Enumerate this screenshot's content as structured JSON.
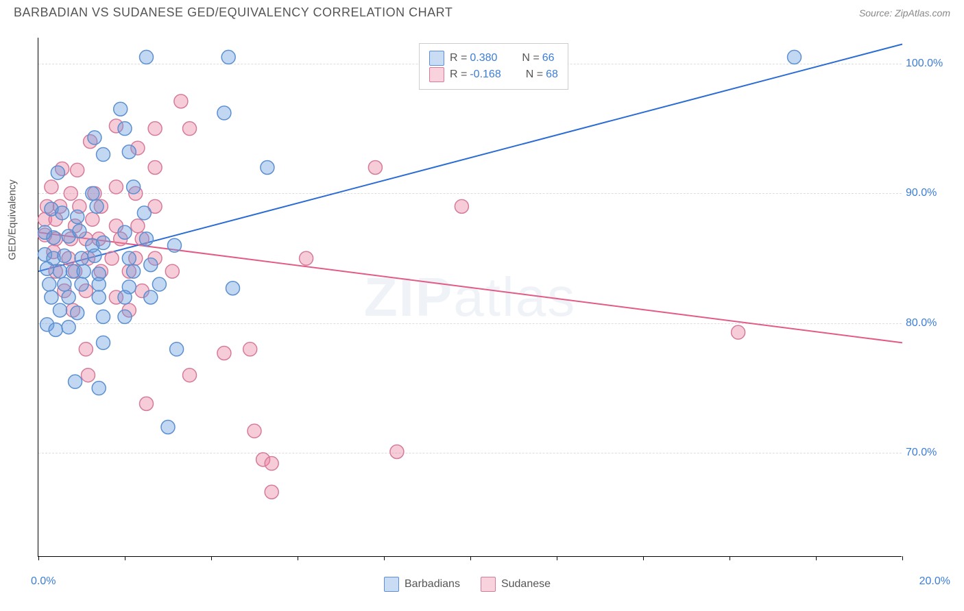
{
  "header": {
    "title": "BARBADIAN VS SUDANESE GED/EQUIVALENCY CORRELATION CHART",
    "source": "Source: ZipAtlas.com"
  },
  "watermark": {
    "prefix": "ZIP",
    "suffix": "atlas"
  },
  "chart": {
    "type": "scatter",
    "background_color": "#ffffff",
    "grid_color": "#dddddd",
    "axis_color": "#000000",
    "y_axis_label": "GED/Equivalency",
    "x_range": [
      0,
      20
    ],
    "y_range": [
      62,
      102
    ],
    "yticks": [
      70.0,
      80.0,
      90.0,
      100.0
    ],
    "ytick_labels": [
      "70.0%",
      "80.0%",
      "90.0%",
      "100.0%"
    ],
    "xtick_positions": [
      0,
      2,
      4,
      6,
      8,
      10,
      12,
      14,
      16,
      18,
      20
    ],
    "x_label_start": "0.0%",
    "x_label_end": "20.0%",
    "series": {
      "blue": {
        "label": "Barbadians",
        "marker_color": "rgba(99,155,222,0.40)",
        "stroke_color": "#5b8fd0",
        "line_color": "#2b6cd4",
        "line_width": 2,
        "r_value": "0.380",
        "n_value": "66",
        "trend": {
          "x1": 0,
          "y1": 84,
          "x2": 20,
          "y2": 101.5
        },
        "points": [
          [
            2.5,
            100.5
          ],
          [
            4.4,
            100.5
          ],
          [
            17.5,
            100.5
          ],
          [
            1.9,
            96.5
          ],
          [
            4.3,
            96.2
          ],
          [
            2.0,
            95.0
          ],
          [
            1.3,
            94.3
          ],
          [
            1.5,
            93.0
          ],
          [
            2.1,
            93.2
          ],
          [
            5.3,
            92.0
          ],
          [
            0.45,
            91.6
          ],
          [
            1.25,
            90.0
          ],
          [
            2.2,
            90.5
          ],
          [
            0.3,
            88.8
          ],
          [
            0.55,
            88.5
          ],
          [
            0.9,
            88.2
          ],
          [
            1.35,
            89.0
          ],
          [
            2.45,
            88.5
          ],
          [
            0.15,
            87.0
          ],
          [
            0.35,
            86.6
          ],
          [
            0.7,
            86.7
          ],
          [
            0.95,
            87.1
          ],
          [
            1.25,
            86.0
          ],
          [
            1.5,
            86.2
          ],
          [
            2.0,
            87.0
          ],
          [
            2.5,
            86.5
          ],
          [
            0.15,
            85.3
          ],
          [
            0.35,
            85.0
          ],
          [
            0.6,
            85.2
          ],
          [
            1.0,
            85.0
          ],
          [
            1.3,
            85.2
          ],
          [
            2.1,
            85.0
          ],
          [
            3.15,
            86.0
          ],
          [
            0.2,
            84.2
          ],
          [
            0.5,
            84.0
          ],
          [
            0.8,
            84.0
          ],
          [
            1.05,
            84.0
          ],
          [
            1.4,
            83.8
          ],
          [
            2.2,
            84.0
          ],
          [
            2.6,
            84.5
          ],
          [
            0.25,
            83.0
          ],
          [
            0.6,
            83.0
          ],
          [
            1.0,
            83.0
          ],
          [
            1.4,
            83.0
          ],
          [
            2.1,
            82.8
          ],
          [
            2.8,
            83.0
          ],
          [
            4.5,
            82.7
          ],
          [
            0.3,
            82.0
          ],
          [
            0.7,
            82.0
          ],
          [
            1.4,
            82.0
          ],
          [
            2.0,
            82.0
          ],
          [
            2.6,
            82.0
          ],
          [
            0.5,
            81.0
          ],
          [
            0.9,
            80.8
          ],
          [
            1.5,
            80.5
          ],
          [
            2.0,
            80.5
          ],
          [
            0.2,
            79.9
          ],
          [
            0.4,
            79.5
          ],
          [
            0.7,
            79.7
          ],
          [
            1.5,
            78.5
          ],
          [
            3.2,
            78.0
          ],
          [
            0.85,
            75.5
          ],
          [
            1.4,
            75.0
          ],
          [
            3.0,
            72.0
          ]
        ]
      },
      "pink": {
        "label": "Sudanese",
        "marker_color": "rgba(235,128,160,0.40)",
        "stroke_color": "#d67a9a",
        "line_color": "#e35a85",
        "line_width": 2,
        "r_value": "-0.168",
        "n_value": "68",
        "trend": {
          "x1": 0,
          "y1": 87,
          "x2": 20,
          "y2": 78.5
        },
        "points": [
          [
            3.3,
            97.1
          ],
          [
            1.8,
            95.2
          ],
          [
            2.7,
            95.0
          ],
          [
            3.5,
            95.0
          ],
          [
            1.2,
            94.0
          ],
          [
            2.3,
            93.5
          ],
          [
            0.55,
            91.9
          ],
          [
            0.9,
            91.8
          ],
          [
            2.7,
            92.0
          ],
          [
            7.8,
            92.0
          ],
          [
            0.3,
            90.5
          ],
          [
            0.75,
            90.0
          ],
          [
            1.3,
            90.0
          ],
          [
            1.8,
            90.5
          ],
          [
            2.25,
            90.0
          ],
          [
            0.2,
            89.0
          ],
          [
            0.5,
            89.0
          ],
          [
            0.95,
            89.0
          ],
          [
            1.45,
            89.0
          ],
          [
            2.7,
            89.0
          ],
          [
            9.8,
            89.0
          ],
          [
            0.15,
            88.0
          ],
          [
            0.4,
            88.0
          ],
          [
            0.85,
            87.5
          ],
          [
            1.25,
            88.0
          ],
          [
            1.8,
            87.5
          ],
          [
            2.3,
            87.5
          ],
          [
            0.15,
            86.8
          ],
          [
            0.4,
            86.5
          ],
          [
            0.75,
            86.5
          ],
          [
            1.1,
            86.5
          ],
          [
            1.4,
            86.5
          ],
          [
            1.9,
            86.5
          ],
          [
            2.4,
            86.5
          ],
          [
            0.35,
            85.5
          ],
          [
            0.7,
            85.0
          ],
          [
            1.15,
            85.0
          ],
          [
            1.7,
            85.0
          ],
          [
            2.25,
            85.0
          ],
          [
            2.7,
            85.0
          ],
          [
            0.4,
            84.0
          ],
          [
            0.85,
            84.0
          ],
          [
            1.45,
            84.0
          ],
          [
            2.1,
            84.0
          ],
          [
            3.1,
            84.0
          ],
          [
            6.2,
            85.0
          ],
          [
            0.6,
            82.5
          ],
          [
            1.1,
            82.5
          ],
          [
            1.8,
            82.0
          ],
          [
            2.4,
            82.5
          ],
          [
            0.8,
            81.0
          ],
          [
            2.1,
            81.0
          ],
          [
            16.2,
            79.3
          ],
          [
            1.1,
            78.0
          ],
          [
            4.3,
            77.7
          ],
          [
            4.9,
            78.0
          ],
          [
            1.15,
            76.0
          ],
          [
            3.5,
            76.0
          ],
          [
            2.5,
            73.8
          ],
          [
            5.0,
            71.7
          ],
          [
            5.2,
            69.5
          ],
          [
            5.4,
            69.2
          ],
          [
            8.3,
            70.1
          ],
          [
            5.4,
            67.0
          ]
        ]
      }
    },
    "marker_radius": 10,
    "marker_stroke_width": 1.5,
    "legend_label_R": "R =",
    "legend_label_N": "N ="
  }
}
